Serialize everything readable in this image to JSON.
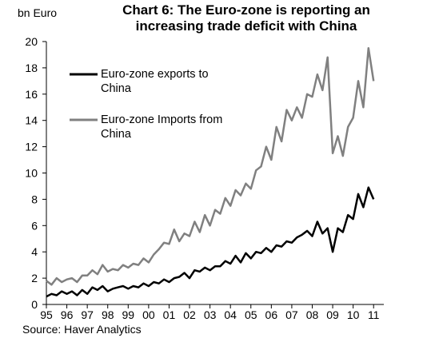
{
  "chart_data": {
    "type": "line",
    "title": "Chart 6: The Euro-zone is reporting an\nincreasing trade deficit with China",
    "unit": "bn Euro",
    "source": "Source: Haver Analytics",
    "xlabel": "",
    "ylabel": "",
    "ylim": [
      0,
      20
    ],
    "yticks": [
      "0",
      "2",
      "4",
      "6",
      "8",
      "10",
      "12",
      "14",
      "16",
      "18",
      "20"
    ],
    "xlim": [
      1995,
      2011.5
    ],
    "xticks": [
      "95",
      "96",
      "97",
      "98",
      "99",
      "00",
      "01",
      "02",
      "03",
      "04",
      "05",
      "06",
      "07",
      "08",
      "09",
      "10",
      "11"
    ],
    "grid": false,
    "legend_position": "top-left",
    "series": [
      {
        "name": "Euro-zone exports to China",
        "color": "#000000",
        "x": [
          1995.0,
          1995.25,
          1995.5,
          1995.75,
          1996.0,
          1996.25,
          1996.5,
          1996.75,
          1997.0,
          1997.25,
          1997.5,
          1997.75,
          1998.0,
          1998.25,
          1998.5,
          1998.75,
          1999.0,
          1999.25,
          1999.5,
          1999.75,
          2000.0,
          2000.25,
          2000.5,
          2000.75,
          2001.0,
          2001.25,
          2001.5,
          2001.75,
          2002.0,
          2002.25,
          2002.5,
          2002.75,
          2003.0,
          2003.25,
          2003.5,
          2003.75,
          2004.0,
          2004.25,
          2004.5,
          2004.75,
          2005.0,
          2005.25,
          2005.5,
          2005.75,
          2006.0,
          2006.25,
          2006.5,
          2006.75,
          2007.0,
          2007.25,
          2007.5,
          2007.75,
          2008.0,
          2008.25,
          2008.5,
          2008.75,
          2009.0,
          2009.25,
          2009.5,
          2009.75,
          2010.0,
          2010.25,
          2010.5,
          2010.75,
          2011.0
        ],
        "values": [
          0.6,
          0.8,
          0.7,
          1.0,
          0.8,
          1.0,
          0.7,
          1.1,
          0.8,
          1.3,
          1.1,
          1.4,
          1.0,
          1.2,
          1.3,
          1.4,
          1.2,
          1.4,
          1.3,
          1.6,
          1.4,
          1.7,
          1.6,
          1.9,
          1.7,
          2.0,
          2.1,
          2.4,
          2.0,
          2.6,
          2.5,
          2.8,
          2.6,
          2.9,
          2.9,
          3.3,
          3.1,
          3.7,
          3.2,
          3.9,
          3.5,
          4.0,
          3.9,
          4.3,
          4.0,
          4.5,
          4.4,
          4.8,
          4.7,
          5.1,
          5.3,
          5.6,
          5.2,
          6.3,
          5.4,
          5.8,
          4.0,
          5.8,
          5.5,
          6.8,
          6.5,
          8.4,
          7.4,
          8.9,
          8.0
        ]
      },
      {
        "name": "Euro-zone Imports from China",
        "color": "#808080",
        "x": [
          1995.0,
          1995.25,
          1995.5,
          1995.75,
          1996.0,
          1996.25,
          1996.5,
          1996.75,
          1997.0,
          1997.25,
          1997.5,
          1997.75,
          1998.0,
          1998.25,
          1998.5,
          1998.75,
          1999.0,
          1999.25,
          1999.5,
          1999.75,
          2000.0,
          2000.25,
          2000.5,
          2000.75,
          2001.0,
          2001.25,
          2001.5,
          2001.75,
          2002.0,
          2002.25,
          2002.5,
          2002.75,
          2003.0,
          2003.25,
          2003.5,
          2003.75,
          2004.0,
          2004.25,
          2004.5,
          2004.75,
          2005.0,
          2005.25,
          2005.5,
          2005.75,
          2006.0,
          2006.25,
          2006.5,
          2006.75,
          2007.0,
          2007.25,
          2007.5,
          2007.75,
          2008.0,
          2008.25,
          2008.5,
          2008.75,
          2009.0,
          2009.25,
          2009.5,
          2009.75,
          2010.0,
          2010.25,
          2010.5,
          2010.75,
          2011.0
        ],
        "values": [
          1.8,
          1.5,
          2.0,
          1.7,
          1.9,
          2.0,
          1.7,
          2.2,
          2.2,
          2.6,
          2.3,
          3.0,
          2.5,
          2.7,
          2.6,
          3.0,
          2.8,
          3.1,
          3.0,
          3.5,
          3.2,
          3.8,
          4.2,
          4.7,
          4.6,
          5.7,
          4.8,
          5.4,
          5.2,
          6.3,
          5.5,
          6.8,
          6.0,
          7.2,
          6.9,
          8.1,
          7.5,
          8.7,
          8.3,
          9.2,
          8.8,
          10.2,
          10.5,
          12.0,
          11.0,
          13.5,
          12.4,
          14.8,
          14.0,
          15.0,
          14.2,
          16.0,
          15.8,
          17.5,
          16.3,
          18.8,
          11.5,
          12.8,
          11.3,
          13.5,
          14.2,
          17.0,
          15.0,
          19.5,
          17.0
        ]
      }
    ]
  }
}
